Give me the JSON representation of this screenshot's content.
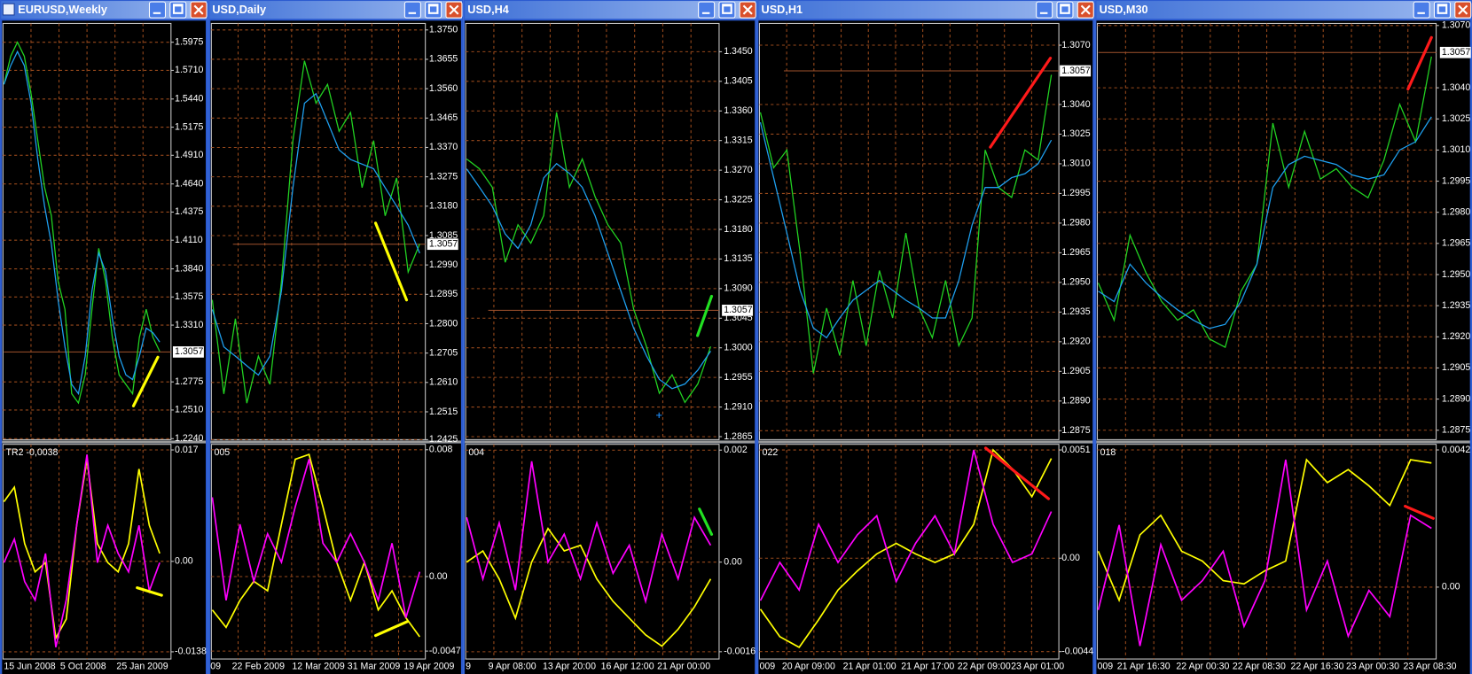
{
  "windows": [
    {
      "title": "EURUSD,Weekly",
      "price_axis": {
        "ylim": [
          1.2222,
          1.6152
        ],
        "ticks": [
          1.5975,
          {
            "value": 1.571,
            "label": "1.5710"
          },
          {
            "value": 1.544,
            "label": "1.5440"
          },
          1.5175,
          {
            "value": 1.491,
            "label": "1.4910"
          },
          {
            "value": 1.464,
            "label": "1.4640"
          },
          1.4375,
          {
            "value": 1.411,
            "label": "1.4110"
          },
          {
            "value": 1.384,
            "label": "1.3840"
          },
          1.3575,
          {
            "value": 1.331,
            "label": "1.3310"
          },
          1.2775,
          {
            "value": 1.251,
            "label": "1.2510"
          },
          {
            "value": 1.224,
            "label": "1.2240"
          }
        ]
      },
      "last_price": 1.3057,
      "price_lines": [
        {
          "color": "#22d422",
          "values": [
            1.5578,
            1.5843,
            1.5975,
            1.5843,
            1.549,
            1.5048,
            1.4607,
            1.4342,
            1.3724,
            1.3459,
            1.2664,
            1.2576,
            1.2841,
            1.3459,
            1.4033,
            1.3724,
            1.3194,
            1.2841,
            1.2752,
            1.2664,
            1.3194,
            1.3459,
            1.3194,
            1.3061
          ]
        },
        {
          "color": "#1ea0f0",
          "values": [
            1.5578,
            1.5755,
            1.5887,
            1.5755,
            1.5401,
            1.4872,
            1.443,
            1.4077,
            1.3547,
            1.3106,
            1.2752,
            1.2664,
            1.3017,
            1.3635,
            1.3989,
            1.3812,
            1.3371,
            1.3017,
            1.2841,
            1.2797,
            1.3017,
            1.3282,
            1.3238,
            1.315
          ]
        }
      ],
      "indicator": {
        "label": "TR2 -0,0038",
        "ylim": [
          -0.0149,
          0.018
        ],
        "ticks": [
          0.017,
          {
            "value": 0,
            "label": "0.00"
          },
          -0.0138
        ],
        "lines": [
          {
            "color": "#ffff00",
            "values": [
              0.0091,
              0.0113,
              0.0027,
              -0.0016,
              -0.0002,
              -0.0117,
              -0.0088,
              0.0055,
              0.0156,
              0.0027,
              -0.0002,
              -0.0016,
              0.0027,
              0.0141,
              0.0055,
              0.0012
            ]
          },
          {
            "color": "#ff00ff",
            "values": [
              -0.0002,
              0.0034,
              -0.0031,
              -0.0059,
              0.0012,
              -0.0131,
              -0.0059,
              0.0055,
              0.0163,
              -0.0002,
              0.0055,
              0.0012,
              -0.0016,
              0.0055,
              -0.0045,
              -0.0002
            ]
          }
        ]
      },
      "dates": [
        "15 Jun 2008",
        "5 Oct 2008",
        "25 Jan 2009"
      ]
    },
    {
      "title": "USD,Daily",
      "price_axis": {
        "ylim": [
          1.2422,
          1.3771
        ],
        "ticks": [
          {
            "value": 1.375,
            "label": "1.3750"
          },
          1.3655,
          {
            "value": 1.356,
            "label": "1.3560"
          },
          1.3465,
          {
            "value": 1.337,
            "label": "1.3370"
          },
          1.3275,
          {
            "value": 1.318,
            "label": "1.3180"
          },
          1.3085,
          {
            "value": 1.299,
            "label": "1.2990"
          },
          1.2895,
          {
            "value": 1.28,
            "label": "1.2800"
          },
          1.2705,
          {
            "value": 1.261,
            "label": "1.2610"
          },
          1.2515,
          1.2425
        ]
      },
      "last_price": 1.3057,
      "price_lines": [
        {
          "color": "#22d422",
          "values": [
            1.2877,
            1.2573,
            1.2816,
            1.2543,
            1.2695,
            1.2604,
            1.2937,
            1.3392,
            1.365,
            1.3513,
            1.3574,
            1.3422,
            1.3483,
            1.324,
            1.3392,
            1.3149,
            1.3271,
            1.2967,
            1.3058
          ]
        },
        {
          "color": "#1ea0f0",
          "values": [
            1.2846,
            1.2725,
            1.2695,
            1.2664,
            1.2634,
            1.2695,
            1.2907,
            1.324,
            1.3513,
            1.3544,
            1.3453,
            1.3362,
            1.3331,
            1.3316,
            1.3301,
            1.324,
            1.318,
            1.3119,
            1.3028
          ]
        }
      ],
      "indicator": {
        "label": "005",
        "ylim": [
          -0.0052,
          0.0084
        ],
        "ticks": [
          0.008,
          {
            "value": 0,
            "label": "0.00"
          },
          -0.0047
        ],
        "lines": [
          {
            "color": "#ffff00",
            "values": [
              -0.0021,
              -0.0032,
              -0.0015,
              -0.0003,
              -0.0009,
              0.0033,
              0.0074,
              0.0077,
              0.0044,
              0.0009,
              -0.0015,
              0.0009,
              -0.0021,
              -0.0009,
              -0.0026,
              -0.0038
            ]
          },
          {
            "color": "#ff00ff",
            "values": [
              0.005,
              -0.0015,
              0.0033,
              -0.0003,
              0.0027,
              0.0009,
              0.0044,
              0.0074,
              0.0021,
              0.0009,
              0.0027,
              0.0009,
              -0.0015,
              0.0021,
              -0.0026,
              0.0003
            ]
          }
        ]
      },
      "dates": [
        "09",
        "22 Feb 2009",
        "12 Mar 2009",
        "31 Mar 2009",
        "19 Apr 2009"
      ]
    },
    {
      "title": "USD,H4",
      "price_axis": {
        "ylim": [
          1.2859,
          1.3493
        ],
        "ticks": [
          {
            "value": 1.345,
            "label": "1.3450"
          },
          1.3405,
          {
            "value": 1.336,
            "label": "1.3360"
          },
          1.3315,
          {
            "value": 1.327,
            "label": "1.3270"
          },
          1.3225,
          {
            "value": 1.318,
            "label": "1.3180"
          },
          1.3135,
          {
            "value": 1.309,
            "label": "1.3090"
          },
          1.3045,
          {
            "value": 1.3,
            "label": "1.3000"
          },
          1.2955,
          {
            "value": 1.291,
            "label": "1.2910"
          },
          1.2865
        ]
      },
      "last_price": 1.3057,
      "price_lines": [
        {
          "color": "#22d422",
          "values": [
            1.3287,
            1.3272,
            1.3244,
            1.313,
            1.3187,
            1.3159,
            1.3201,
            1.3358,
            1.3244,
            1.3287,
            1.323,
            1.3187,
            1.3159,
            1.3059,
            1.3002,
            1.2931,
            1.2959,
            1.2917,
            1.2945,
            1.3002
          ]
        },
        {
          "color": "#1ea0f0",
          "values": [
            1.3272,
            1.3244,
            1.3215,
            1.3173,
            1.3151,
            1.3187,
            1.3258,
            1.328,
            1.3265,
            1.3244,
            1.3201,
            1.3144,
            1.3087,
            1.303,
            1.2988,
            1.2952,
            1.2938,
            1.2945,
            1.2966,
            1.2995
          ]
        }
      ],
      "indicator": {
        "label": "004",
        "ylim": [
          -0.00173,
          0.00212
        ],
        "ticks": [
          0.002,
          {
            "value": 0,
            "label": "0.00"
          },
          -0.0016
        ],
        "lines": [
          {
            "color": "#ffff00",
            "values": [
              0,
              0.0002,
              -0.0003,
              -0.001,
              0,
              0.0006,
              0.0002,
              0.0003,
              -0.0003,
              -0.0007,
              -0.001,
              -0.0013,
              -0.0015,
              -0.0012,
              -0.0008,
              -0.0003
            ]
          },
          {
            "color": "#ff00ff",
            "values": [
              0.0008,
              -0.0003,
              0.0007,
              -0.0005,
              0.0018,
              0,
              0.0005,
              -0.0003,
              0.0007,
              -0.0002,
              0.0003,
              -0.0007,
              0.0005,
              -0.0003,
              0.0008,
              0.0003
            ]
          }
        ]
      },
      "dates": [
        "9",
        "9 Apr 08:00",
        "13 Apr 20:00",
        "16 Apr 12:00",
        "21 Apr 00:00"
      ]
    },
    {
      "title": "USD,H1",
      "price_axis": {
        "ylim": [
          1.287,
          1.3081
        ],
        "ticks": [
          {
            "value": 1.307,
            "label": "1.3070"
          },
          {
            "value": 1.304,
            "label": "1.3040"
          },
          1.3025,
          {
            "value": 1.301,
            "label": "1.3010"
          },
          1.2995,
          {
            "value": 1.298,
            "label": "1.2980"
          },
          1.2965,
          {
            "value": 1.295,
            "label": "1.2950"
          },
          1.2935,
          {
            "value": 1.292,
            "label": "1.2920"
          },
          1.2905,
          {
            "value": 1.289,
            "label": "1.2890"
          },
          1.2875
        ]
      },
      "last_price": 1.3057,
      "price_lines": [
        {
          "color": "#22d422",
          "values": [
            1.3036,
            1.3008,
            1.3017,
            1.2965,
            1.2904,
            1.2937,
            1.2913,
            1.2951,
            1.2918,
            1.2956,
            1.2932,
            1.2975,
            1.2937,
            1.2922,
            1.2951,
            1.2918,
            1.2932,
            1.3017,
            1.2998,
            1.2993,
            1.3017,
            1.3012,
            1.3055
          ]
        },
        {
          "color": "#1ea0f0",
          "values": [
            1.3031,
            1.3003,
            1.2975,
            1.2946,
            1.2927,
            1.2922,
            1.2932,
            1.2941,
            1.2946,
            1.2951,
            1.2946,
            1.2941,
            1.2937,
            1.2932,
            1.2932,
            1.2951,
            1.2979,
            1.2998,
            1.2998,
            1.3003,
            1.3005,
            1.301,
            1.3022
          ]
        }
      ],
      "indicator": {
        "label": "022",
        "ylim": [
          -0.00475,
          0.00541
        ],
        "ticks": [
          0.0051,
          {
            "value": 0,
            "label": "0.00"
          },
          -0.0044
        ],
        "lines": [
          {
            "color": "#ffff00",
            "values": [
              -0.0024,
              -0.0037,
              -0.0042,
              -0.0029,
              -0.0015,
              -0.0006,
              0.0002,
              0.0007,
              0.0002,
              -0.0002,
              0.0002,
              0.0016,
              0.0051,
              0.0042,
              0.0029,
              0.0047
            ]
          },
          {
            "color": "#ff00ff",
            "values": [
              -0.002,
              -0.0002,
              -0.0015,
              0.0016,
              -0.0002,
              0.0011,
              0.002,
              -0.0011,
              0.0007,
              0.002,
              0.0002,
              0.0051,
              0.0016,
              -0.0002,
              0.0002,
              0.0022
            ]
          }
        ]
      },
      "dates": [
        "009",
        "20 Apr 09:00",
        "21 Apr 01:00",
        "21 Apr 17:00",
        "22 Apr 09:00",
        "23 Apr 01:00"
      ]
    },
    {
      "title": "USD,M30",
      "price_axis": {
        "ylim": [
          1.287,
          1.3071
        ],
        "ticks": [
          {
            "value": 1.307,
            "label": "1.3070"
          },
          {
            "value": 1.304,
            "label": "1.3040"
          },
          1.3025,
          {
            "value": 1.301,
            "label": "1.3010"
          },
          1.2995,
          {
            "value": 1.298,
            "label": "1.2980"
          },
          1.2965,
          {
            "value": 1.295,
            "label": "1.2950"
          },
          1.2935,
          {
            "value": 1.292,
            "label": "1.2920"
          },
          1.2905,
          {
            "value": 1.289,
            "label": "1.2890"
          },
          1.2875
        ]
      },
      "last_price": 1.3057,
      "price_lines": [
        {
          "color": "#22d422",
          "values": [
            1.2946,
            1.2928,
            1.2969,
            1.2951,
            1.2937,
            1.2928,
            1.2933,
            1.2919,
            1.2915,
            1.2942,
            1.2955,
            1.3023,
            1.2992,
            1.3019,
            1.2996,
            1.3001,
            1.2992,
            1.2987,
            1.3005,
            1.3032,
            1.3014,
            1.3055
          ]
        },
        {
          "color": "#1ea0f0",
          "values": [
            1.2942,
            1.2937,
            1.2955,
            1.2946,
            1.2939,
            1.2933,
            1.2928,
            1.2924,
            1.2926,
            1.2937,
            1.2955,
            1.2992,
            1.3003,
            1.3007,
            1.3005,
            1.3003,
            1.2998,
            1.2996,
            1.2998,
            1.301,
            1.3014,
            1.3026
          ]
        }
      ],
      "indicator": {
        "label": "018",
        "ylim": [
          -0.0022,
          0.0044
        ],
        "ticks": [
          0.0042,
          {
            "value": 0,
            "label": "0.00"
          }
        ],
        "lines": [
          {
            "color": "#ffff00",
            "values": [
              0.0011,
              -0.0004,
              0.0016,
              0.0022,
              0.0011,
              0.0008,
              0.0002,
              0.0001,
              0.0005,
              0.0008,
              0.0039,
              0.0032,
              0.0036,
              0.0031,
              0.0025,
              0.0039,
              0.0038
            ]
          },
          {
            "color": "#ff00ff",
            "values": [
              -0.0007,
              0.0019,
              -0.0018,
              0.0013,
              -0.0004,
              0.0002,
              0.0011,
              -0.0012,
              0.0002,
              0.0039,
              -0.0007,
              0.0008,
              -0.0015,
              -0.0001,
              -0.0009,
              0.0022,
              0.0018
            ]
          }
        ]
      },
      "dates": [
        "009",
        "21 Apr 16:30",
        "22 Apr 00:30",
        "22 Apr 08:30",
        "22 Apr 16:30",
        "23 Apr 00:30",
        "23 Apr 08:30"
      ]
    }
  ]
}
